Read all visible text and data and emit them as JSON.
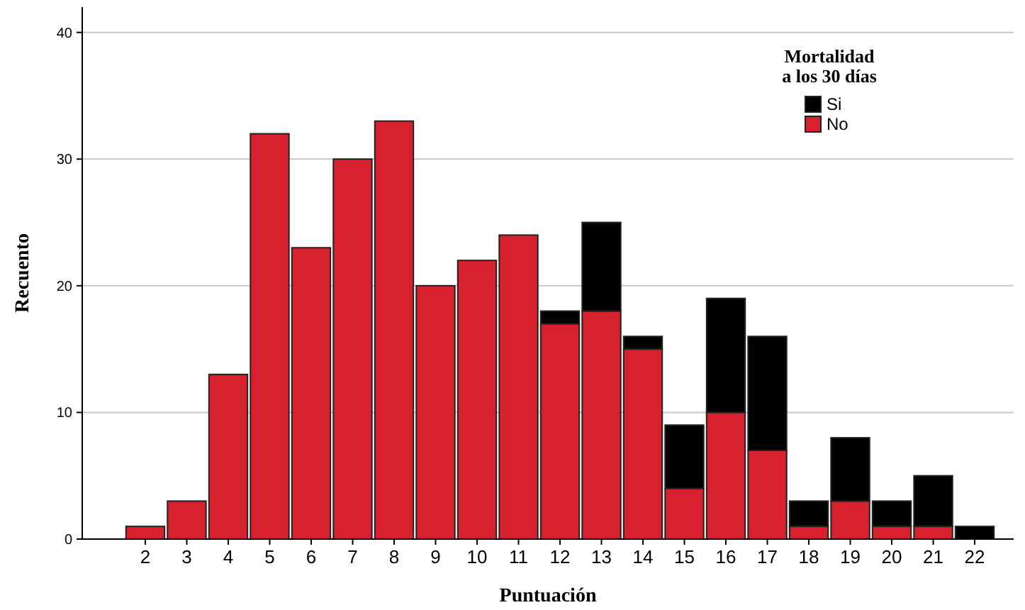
{
  "chart_data": {
    "type": "bar",
    "stacked": true,
    "xlabel": "Puntuación",
    "ylabel": "Recuento",
    "legend_title": "Mortalidad\na los 30 días",
    "legend": "top right",
    "grid": "y",
    "categories": [
      "2",
      "3",
      "4",
      "5",
      "6",
      "7",
      "8",
      "9",
      "10",
      "11",
      "12",
      "13",
      "14",
      "15",
      "16",
      "17",
      "18",
      "19",
      "20",
      "21",
      "22"
    ],
    "ylim": [
      0,
      42
    ],
    "yticks": [
      0,
      10,
      20,
      30,
      40
    ],
    "series": [
      {
        "name": "No",
        "color": "#d8212f",
        "values": [
          1,
          3,
          13,
          32,
          23,
          30,
          33,
          20,
          22,
          24,
          17,
          18,
          15,
          4,
          10,
          7,
          1,
          3,
          1,
          1,
          0
        ]
      },
      {
        "name": "Si",
        "color": "#000000",
        "values": [
          0,
          0,
          0,
          0,
          0,
          0,
          0,
          0,
          0,
          0,
          1,
          7,
          1,
          5,
          9,
          9,
          2,
          5,
          2,
          4,
          1
        ]
      }
    ]
  }
}
